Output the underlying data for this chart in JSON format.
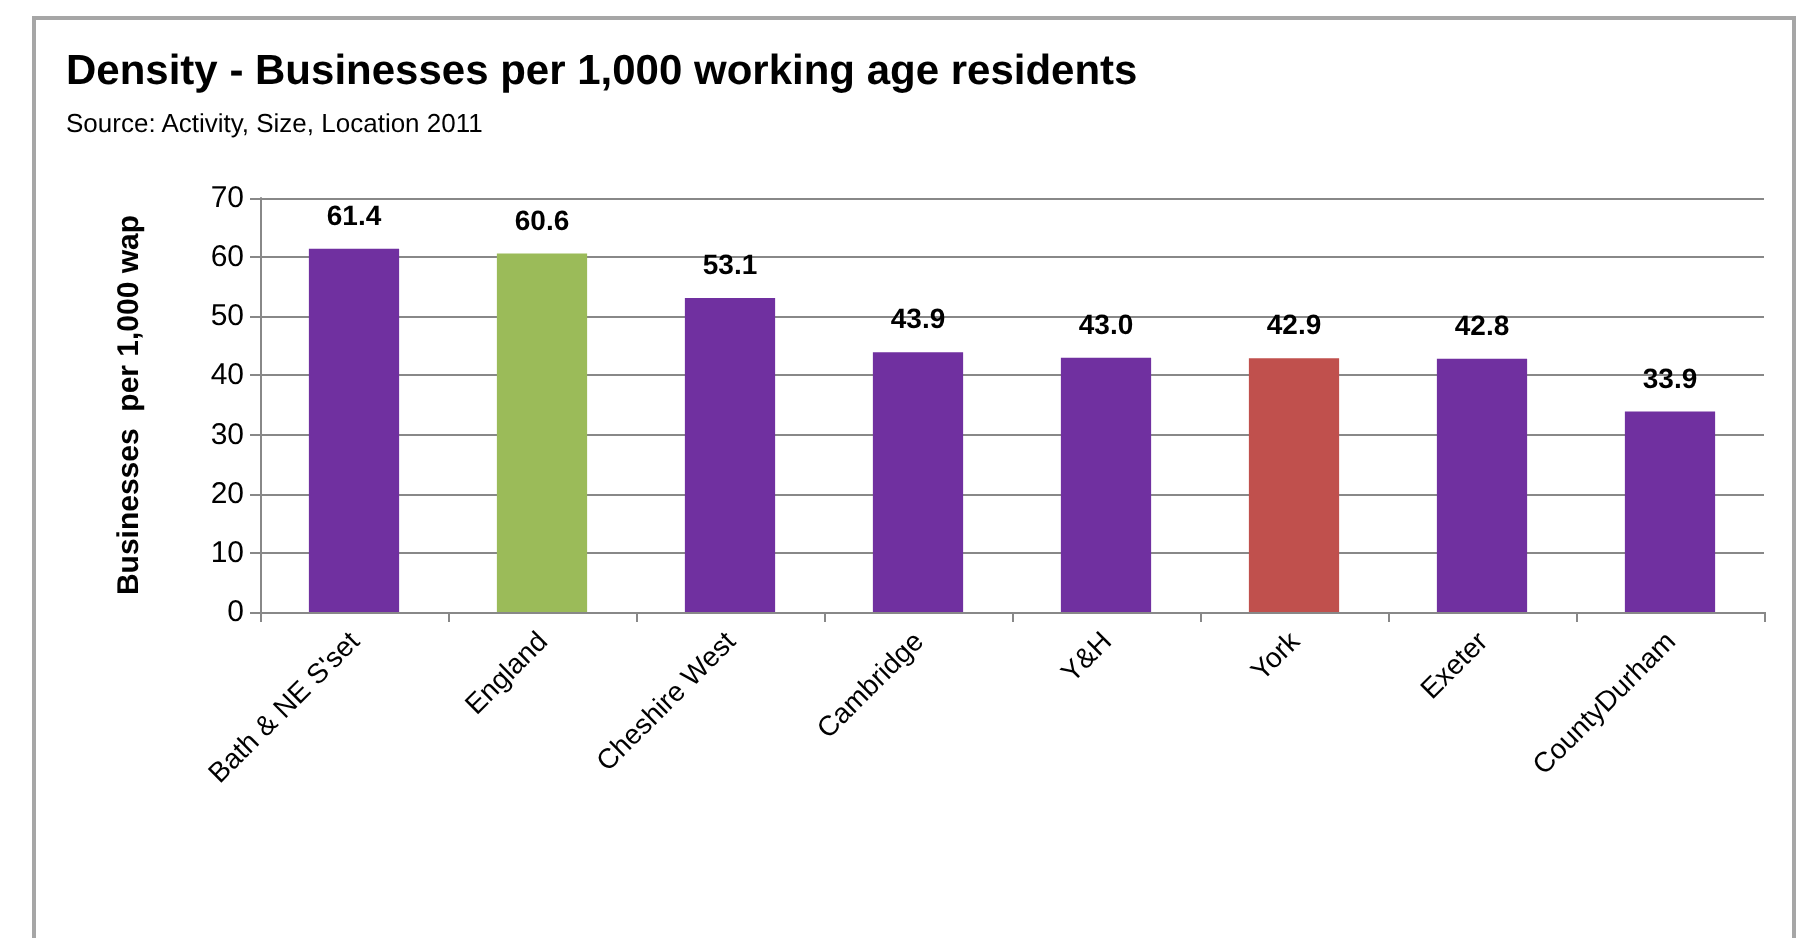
{
  "chart_data": {
    "type": "bar",
    "title": "Density - Businesses per 1,000 working age residents",
    "subtitle": "Source: Activity, Size, Location 2011",
    "ylabel": "Businesses  per 1,000 wap",
    "categories": [
      "Bath & NE S'set",
      "England",
      "Cheshire West",
      "Cambridge",
      "Y&H",
      "York",
      "Exeter",
      "CountyDurham"
    ],
    "values": [
      61.4,
      60.6,
      53.1,
      43.9,
      43.0,
      42.9,
      42.8,
      33.9
    ],
    "value_labels": [
      "61.4",
      "60.6",
      "53.1",
      "43.9",
      "43.0",
      "42.9",
      "42.8",
      "33.9"
    ],
    "colors": [
      "#7030a0",
      "#9bbb59",
      "#7030a0",
      "#7030a0",
      "#7030a0",
      "#c0504d",
      "#7030a0",
      "#7030a0"
    ],
    "ylim": [
      0,
      70
    ],
    "yticks": [
      0,
      10,
      20,
      30,
      40,
      50,
      60,
      70
    ],
    "grid": "y"
  }
}
